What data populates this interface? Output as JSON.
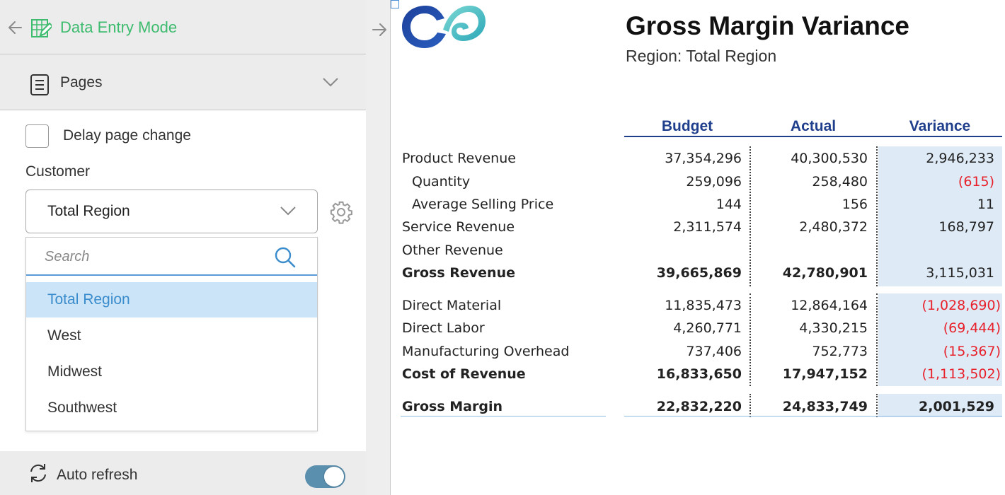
{
  "panel": {
    "header": {
      "title": "Data Entry Mode"
    },
    "pages": {
      "label": "Pages"
    },
    "delay_label": "Delay page change",
    "customer_label": "Customer",
    "customer_value": "Total Region",
    "search_placeholder": "Search",
    "options": [
      "Total Region",
      "West",
      "Midwest",
      "Southwest"
    ],
    "selected_option": "Total Region",
    "auto_refresh_label": "Auto refresh",
    "auto_refresh_on": true
  },
  "report": {
    "title": "Gross Margin Variance",
    "subtitle": "Region: Total Region",
    "columns": [
      "Budget",
      "Actual",
      "Variance"
    ],
    "rows": [
      {
        "label": "Product Revenue",
        "budget": "37,354,296",
        "actual": "40,300,530",
        "variance": "2,946,233"
      },
      {
        "label": "Quantity",
        "budget": "259,096",
        "actual": "258,480",
        "variance": "(615)"
      },
      {
        "label": "Average Selling Price",
        "budget": "144",
        "actual": "156",
        "variance": "11"
      },
      {
        "label": "Service Revenue",
        "budget": "2,311,574",
        "actual": "2,480,372",
        "variance": "168,797"
      },
      {
        "label": "Other Revenue",
        "budget": "",
        "actual": "",
        "variance": ""
      },
      {
        "label": "Gross Revenue",
        "budget": "39,665,869",
        "actual": "42,780,901",
        "variance": "3,115,031"
      },
      {
        "label": "Direct Material",
        "budget": "11,835,473",
        "actual": "12,864,164",
        "variance": "(1,028,690)"
      },
      {
        "label": "Direct Labor",
        "budget": "4,260,771",
        "actual": "4,330,215",
        "variance": "(69,444)"
      },
      {
        "label": "Manufacturing Overhead",
        "budget": "737,406",
        "actual": "752,773",
        "variance": "(15,367)"
      },
      {
        "label": "Cost of Revenue",
        "budget": "16,833,650",
        "actual": "17,947,152",
        "variance": "(1,113,502)"
      },
      {
        "label": "Gross Margin",
        "budget": "22,832,220",
        "actual": "24,833,749",
        "variance": "2,001,529"
      }
    ]
  },
  "colors": {
    "accent_green": "#3dbb6e",
    "header_blue": "#1f3f8c",
    "negative_red": "#e8202a",
    "variance_bg": "#deebf7",
    "selected_bg": "#cce4f7"
  },
  "icons": [
    "back-arrow-icon",
    "data-entry-icon",
    "document-icon",
    "chevron-down-icon",
    "gear-icon",
    "search-icon",
    "refresh-icon",
    "forward-arrow-icon",
    "logo"
  ]
}
